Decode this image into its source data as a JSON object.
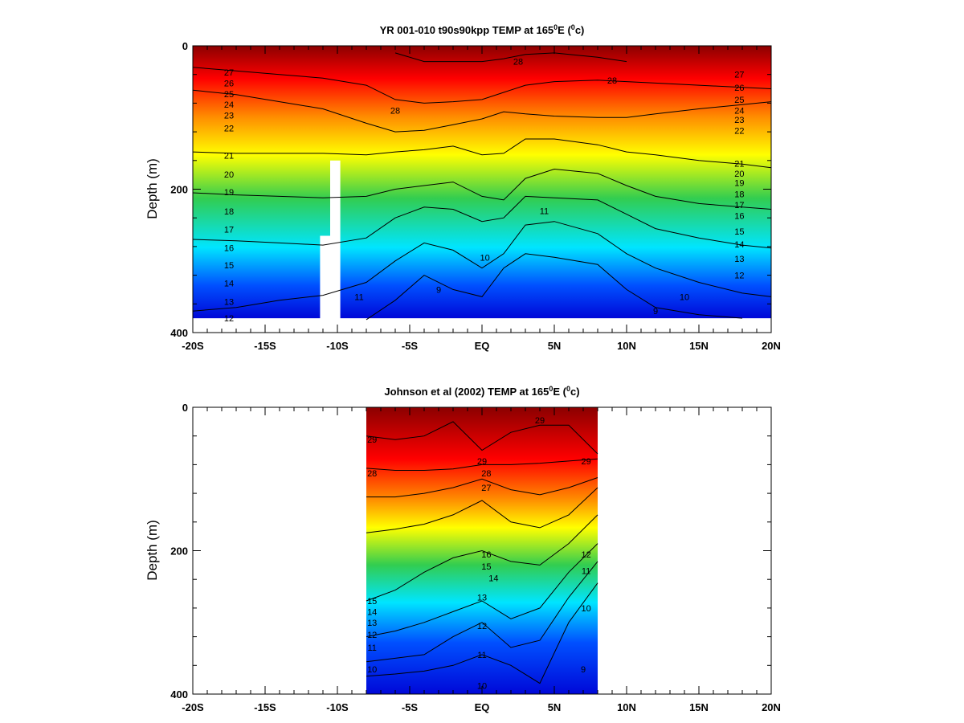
{
  "panels": [
    {
      "title_main": "YR 001-010 t90s90kpp TEMP at 165",
      "title_sup": "0",
      "title_mid": "E (",
      "title_sup2": "0",
      "title_end": "c)",
      "ylabel": "Depth (m)",
      "xticks": [
        "-20S",
        "-15S",
        "-10S",
        "-5S",
        "EQ",
        "5N",
        "10N",
        "15N",
        "20N"
      ],
      "yticks": [
        "0",
        "200",
        "400"
      ]
    },
    {
      "title_main": "Johnson et al (2002) TEMP at 165",
      "title_sup": "0",
      "title_mid": "E (",
      "title_sup2": "0",
      "title_end": "c)",
      "ylabel": "Depth (m)",
      "xticks": [
        "-20S",
        "-15S",
        "-10S",
        "-5S",
        "EQ",
        "5N",
        "10N",
        "15N",
        "20N"
      ],
      "yticks": [
        "0",
        "200",
        "400"
      ]
    }
  ],
  "chart_data": [
    {
      "type": "heatmap",
      "title": "YR 001-010 t90s90kpp TEMP at 165°E (°c)",
      "xlabel": "",
      "ylabel": "Depth (m)",
      "xlim": [
        -20,
        20
      ],
      "ylim": [
        400,
        0
      ],
      "data_depth_max": 380,
      "masked_columns": [
        {
          "x": [
            -11.2,
            -10.5
          ],
          "depth_from": 265
        },
        {
          "x": [
            -10.5,
            -9.8
          ],
          "depth_from": 160
        }
      ],
      "isotherm_depths": {
        "lat": [
          -20,
          -17,
          -14,
          -11,
          -8,
          -6,
          -4,
          -2,
          0,
          1.5,
          3,
          5,
          8,
          10,
          12,
          15,
          18,
          20
        ],
        "t29": [
          null,
          null,
          null,
          null,
          null,
          10,
          22,
          22,
          22,
          18,
          12,
          10,
          16,
          22,
          null,
          null,
          null,
          null
        ],
        "t27": [
          30,
          35,
          40,
          45,
          55,
          75,
          80,
          78,
          75,
          65,
          55,
          50,
          48,
          50,
          52,
          55,
          58,
          60
        ],
        "t24": [
          62,
          68,
          78,
          88,
          108,
          120,
          118,
          110,
          102,
          92,
          95,
          98,
          100,
          100,
          95,
          88,
          82,
          78
        ],
        "t21": [
          148,
          150,
          150,
          150,
          152,
          148,
          145,
          140,
          152,
          150,
          130,
          130,
          138,
          148,
          152,
          160,
          165,
          170
        ],
        "t18": [
          205,
          208,
          210,
          212,
          210,
          200,
          195,
          190,
          210,
          215,
          185,
          172,
          178,
          195,
          210,
          220,
          225,
          228
        ],
        "t15": [
          270,
          272,
          275,
          278,
          268,
          240,
          225,
          228,
          245,
          240,
          210,
          212,
          215,
          235,
          255,
          268,
          278,
          282
        ],
        "t12": [
          370,
          365,
          355,
          348,
          330,
          300,
          275,
          285,
          310,
          290,
          250,
          245,
          262,
          290,
          310,
          330,
          345,
          350
        ],
        "t10": [
          null,
          null,
          null,
          null,
          382,
          355,
          320,
          340,
          350,
          310,
          290,
          295,
          305,
          340,
          365,
          375,
          380,
          null
        ]
      },
      "contour_labels": {
        "left_column_lat": -17.5,
        "left_column": [
          [
            "27",
            37
          ],
          [
            "26",
            52
          ],
          [
            "25",
            67
          ],
          [
            "24",
            82
          ],
          [
            "23",
            97
          ],
          [
            "22",
            115
          ],
          [
            "21",
            153
          ],
          [
            "20",
            179
          ],
          [
            "19",
            204
          ],
          [
            "18",
            231
          ],
          [
            "17",
            256
          ],
          [
            "16",
            282
          ],
          [
            "15",
            306
          ],
          [
            "14",
            331
          ],
          [
            "13",
            357
          ],
          [
            "12",
            380
          ]
        ],
        "right_column_lat": 17.8,
        "right_column": [
          [
            "27",
            40
          ],
          [
            "26",
            58
          ],
          [
            "25",
            75
          ],
          [
            "24",
            90
          ],
          [
            "23",
            103
          ],
          [
            "22",
            118
          ],
          [
            "21",
            164
          ],
          [
            "20",
            178
          ],
          [
            "19",
            191
          ],
          [
            "18",
            207
          ],
          [
            "17",
            222
          ],
          [
            "16",
            237
          ],
          [
            "15",
            259
          ],
          [
            "14",
            277
          ],
          [
            "13",
            297
          ],
          [
            "12",
            320
          ]
        ],
        "other": [
          [
            "28",
            -6,
            90
          ],
          [
            "28",
            2.5,
            22
          ],
          [
            "28",
            9,
            48
          ],
          [
            "11",
            -8.5,
            350
          ],
          [
            "10",
            0.2,
            295
          ],
          [
            "9",
            -3,
            340
          ],
          [
            "11",
            4.3,
            230
          ],
          [
            "10",
            14,
            350
          ],
          [
            "9",
            12,
            370
          ]
        ]
      }
    },
    {
      "type": "heatmap",
      "title": "Johnson et al (2002) TEMP at 165°E (°c)",
      "xlabel": "",
      "ylabel": "Depth (m)",
      "xlim": [
        -20,
        20
      ],
      "ylim": [
        400,
        0
      ],
      "data_lat_range": [
        -8,
        8
      ],
      "isotherm_depths": {
        "lat": [
          -8,
          -6,
          -4,
          -2,
          0,
          2,
          4,
          6,
          8
        ],
        "t29": [
          40,
          45,
          40,
          20,
          60,
          35,
          25,
          25,
          65
        ],
        "t28": [
          85,
          88,
          88,
          86,
          80,
          80,
          78,
          75,
          72
        ],
        "t24": [
          125,
          125,
          120,
          112,
          100,
          115,
          122,
          112,
          98
        ],
        "t20": [
          175,
          170,
          163,
          150,
          130,
          160,
          168,
          150,
          112
        ],
        "t15": [
          270,
          255,
          230,
          210,
          200,
          215,
          220,
          190,
          150
        ],
        "t12": [
          320,
          312,
          300,
          285,
          270,
          295,
          280,
          230,
          190
        ],
        "t11": [
          355,
          350,
          345,
          320,
          300,
          335,
          325,
          265,
          215
        ],
        "t10": [
          375,
          372,
          368,
          360,
          345,
          360,
          385,
          300,
          245
        ]
      },
      "contour_labels": {
        "other": [
          [
            "29",
            -7.6,
            45
          ],
          [
            "28",
            -7.6,
            92
          ],
          [
            "29",
            4,
            18
          ],
          [
            "29",
            0,
            75
          ],
          [
            "29",
            7.2,
            75
          ],
          [
            "15",
            -7.6,
            270
          ],
          [
            "14",
            -7.6,
            285
          ],
          [
            "13",
            -7.6,
            300
          ],
          [
            "12",
            -7.6,
            317
          ],
          [
            "11",
            -7.6,
            335
          ],
          [
            "10",
            -7.6,
            365
          ],
          [
            "28",
            0.3,
            92
          ],
          [
            "27",
            0.3,
            112
          ],
          [
            "16",
            0.3,
            205
          ],
          [
            "15",
            0.3,
            222
          ],
          [
            "14",
            0.8,
            238
          ],
          [
            "13",
            0,
            265
          ],
          [
            "12",
            0,
            305
          ],
          [
            "11",
            0,
            345
          ],
          [
            "10",
            0,
            388
          ],
          [
            "12",
            7.2,
            205
          ],
          [
            "11",
            7.2,
            228
          ],
          [
            "10",
            7.2,
            280
          ],
          [
            "9",
            7,
            365
          ]
        ]
      }
    }
  ],
  "colors": {
    "warmest": "#8b0000",
    "red": "#ff0000",
    "orange": "#ff8c00",
    "yellow": "#ffff00",
    "green": "#32cd50",
    "cyan": "#00e5ff",
    "blue": "#0050ff",
    "deep_blue": "#0008d8"
  }
}
